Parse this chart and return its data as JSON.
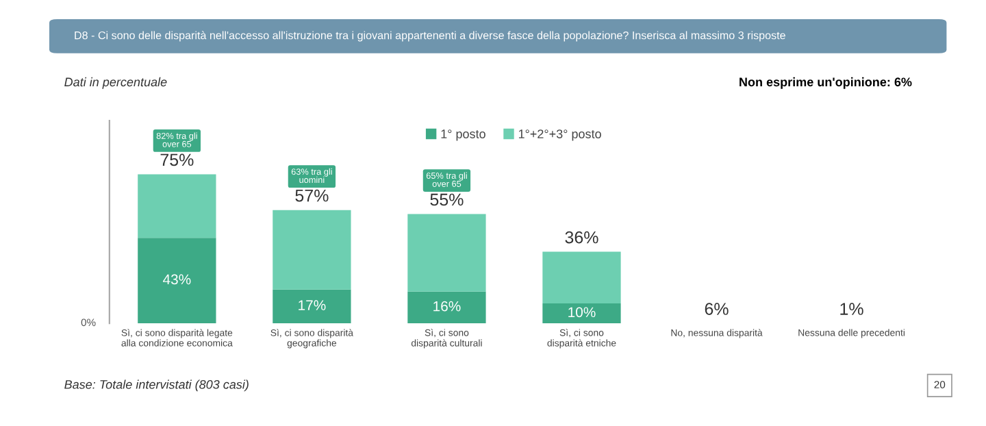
{
  "chart_data": {
    "type": "bar",
    "stacked": true,
    "title": "D8 - Ci sono delle disparità nell'accesso all'istruzione tra i giovani appartenenti a diverse fasce della popolazione? Inserisca al massimo 3 risposte",
    "subtitle": "Dati in percentuale",
    "categories": [
      "Sì, ci sono disparità legate alla condizione economica",
      "Sì, ci sono disparità geografiche",
      "Sì, ci sono disparità culturali",
      "Sì, ci sono disparità etniche",
      "No, nessuna disparità",
      "Nessuna delle precedenti"
    ],
    "series": [
      {
        "name": "1° posto",
        "color": "#3daa86",
        "values": [
          43,
          17,
          16,
          10,
          null,
          null
        ],
        "value_labels": [
          "43%",
          "17%",
          "16%",
          "10%",
          null,
          null
        ]
      },
      {
        "name": "1°+2°+3° posto",
        "color": "#6dcfb1",
        "values": [
          32,
          40,
          39,
          26,
          null,
          null
        ]
      }
    ],
    "totals": [
      "75%",
      "57%",
      "55%",
      "36%",
      null,
      null
    ],
    "legend": "top",
    "grid": false,
    "annotations": [
      "6%",
      "1%",
      "82% tra gli over 65",
      "63% tra gli uomini",
      "65% tra gli over 65",
      "0%",
      "Non esprime un'opinione: 6%",
      "Base: Totale intervistati (803 casi)",
      "20"
    ]
  }
}
